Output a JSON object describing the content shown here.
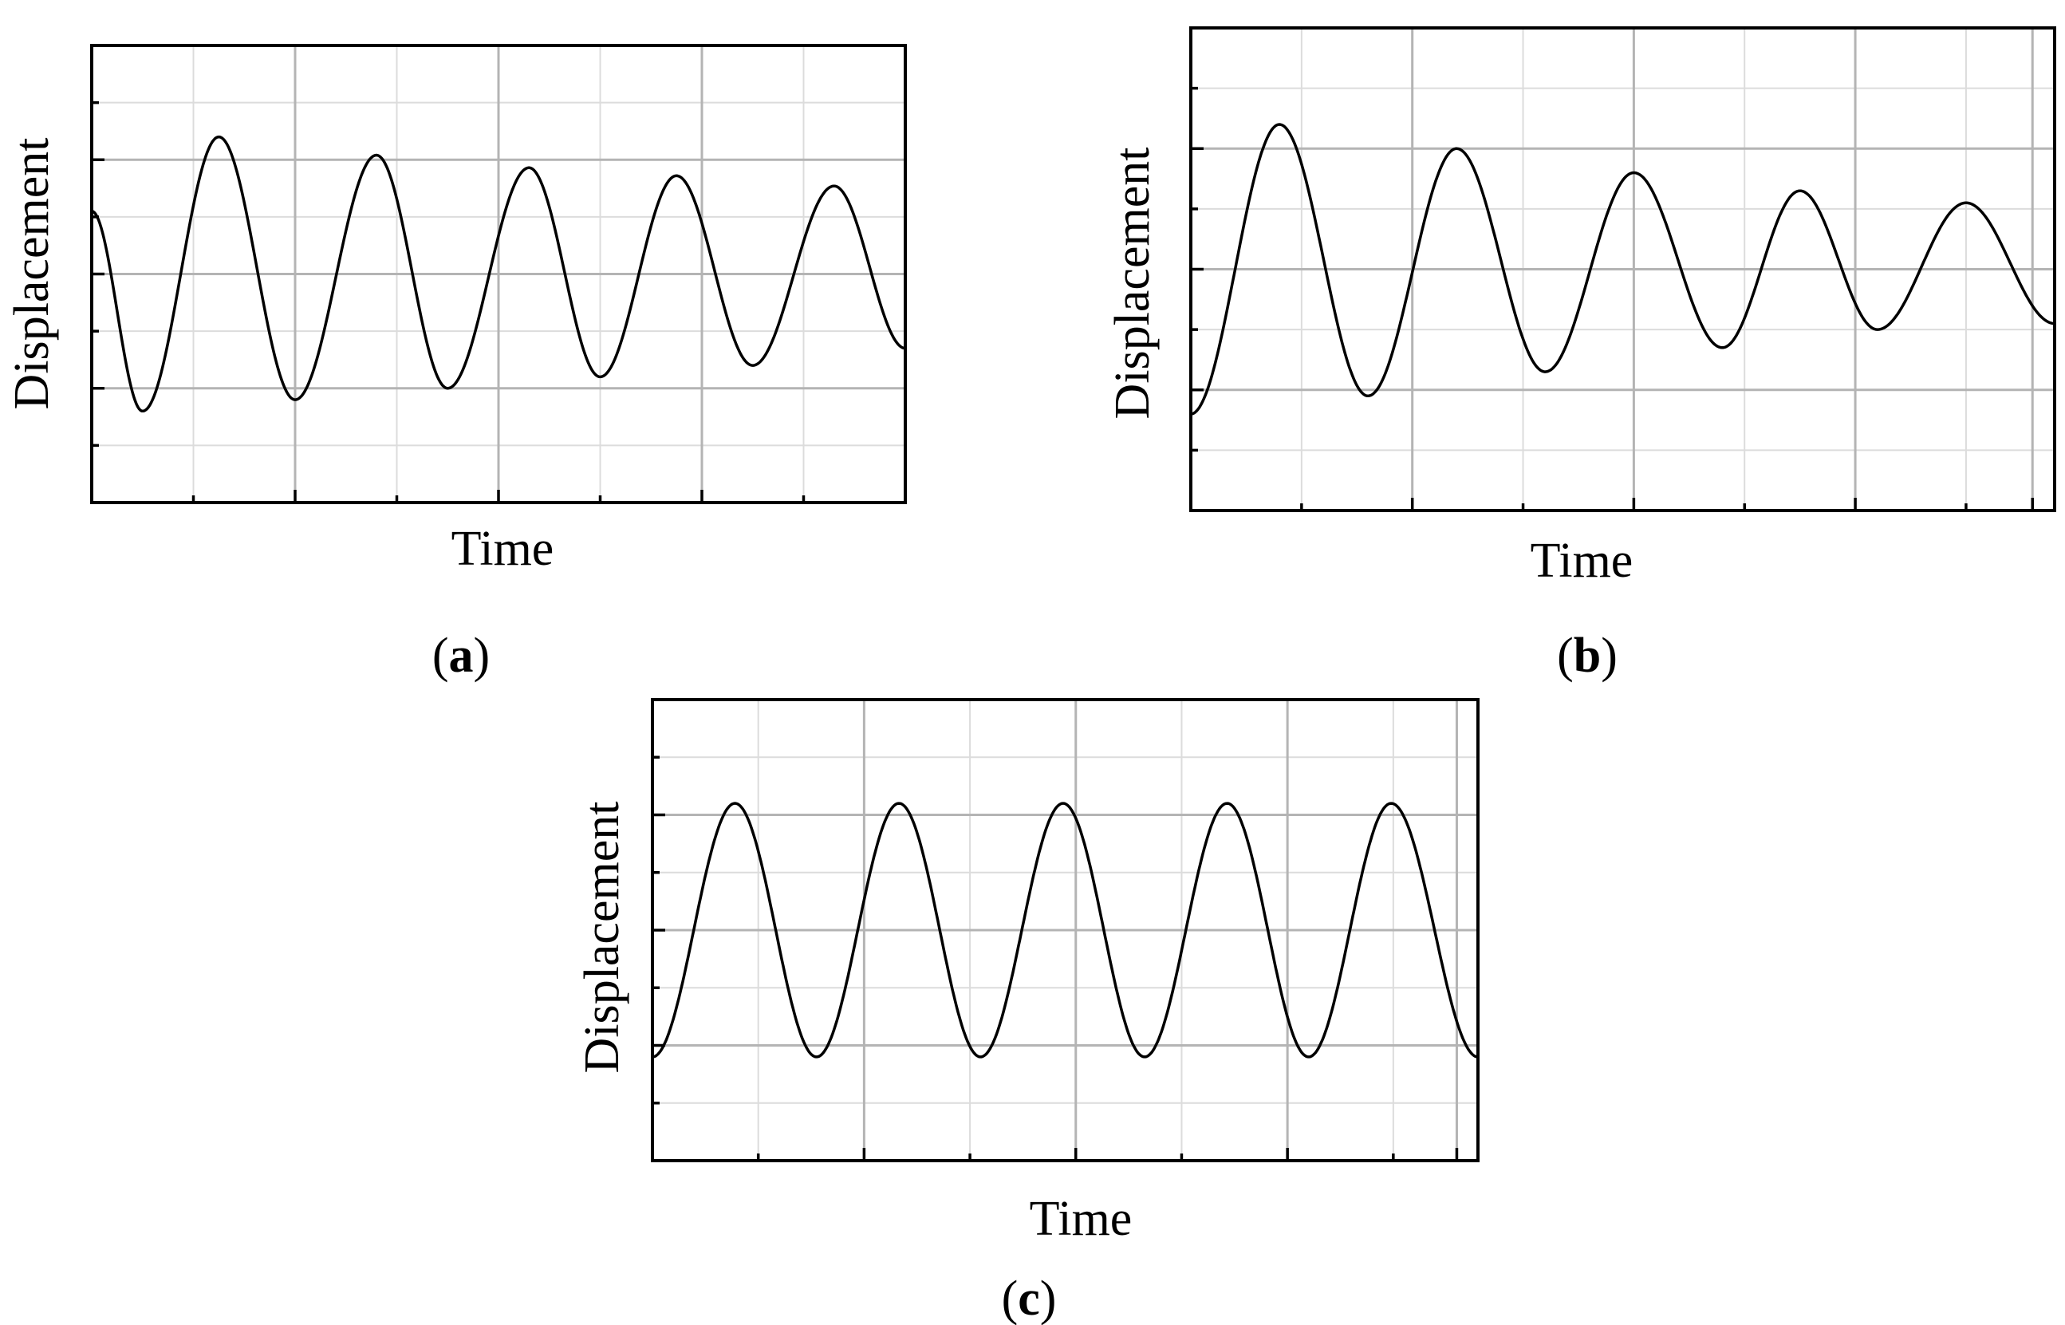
{
  "chart_data": [
    {
      "type": "line",
      "panel_label": "a",
      "xlabel": "Time",
      "ylabel": "Displacement",
      "xlim": [
        0,
        8
      ],
      "ylim": [
        -2,
        2
      ],
      "grid": true,
      "series": [
        {
          "x": [
            0,
            0.5,
            1.25,
            2.0,
            2.8,
            3.5,
            4.3,
            5.0,
            5.75,
            6.5,
            7.3,
            8.0
          ],
          "y": [
            0.55,
            -1.2,
            1.2,
            -1.1,
            1.04,
            -1.0,
            0.93,
            -0.9,
            0.86,
            -0.8,
            0.77,
            -0.65
          ]
        }
      ]
    },
    {
      "type": "line",
      "panel_label": "b",
      "xlabel": "Time",
      "ylabel": "Displacement",
      "xlim": [
        0,
        7.8
      ],
      "ylim": [
        -2,
        2
      ],
      "grid": true,
      "series": [
        {
          "x": [
            0,
            0.8,
            1.6,
            2.4,
            3.2,
            4.0,
            4.8,
            5.5,
            6.2,
            7.0,
            7.8
          ],
          "y": [
            -1.2,
            1.2,
            -1.05,
            1.0,
            -0.85,
            0.8,
            -0.65,
            0.65,
            -0.5,
            0.55,
            -0.45
          ]
        }
      ]
    },
    {
      "type": "line",
      "panel_label": "c",
      "xlabel": "Time",
      "ylabel": "Displacement",
      "xlim": [
        0,
        7.8
      ],
      "ylim": [
        -2,
        2
      ],
      "grid": true,
      "series": [
        {
          "x": [
            0,
            0.78,
            1.55,
            2.33,
            3.1,
            3.88,
            4.65,
            5.43,
            6.2,
            6.98,
            7.8
          ],
          "y": [
            -1.1,
            1.1,
            -1.1,
            1.1,
            -1.1,
            1.1,
            -1.1,
            1.1,
            -1.1,
            1.1,
            -1.1
          ]
        }
      ]
    }
  ]
}
